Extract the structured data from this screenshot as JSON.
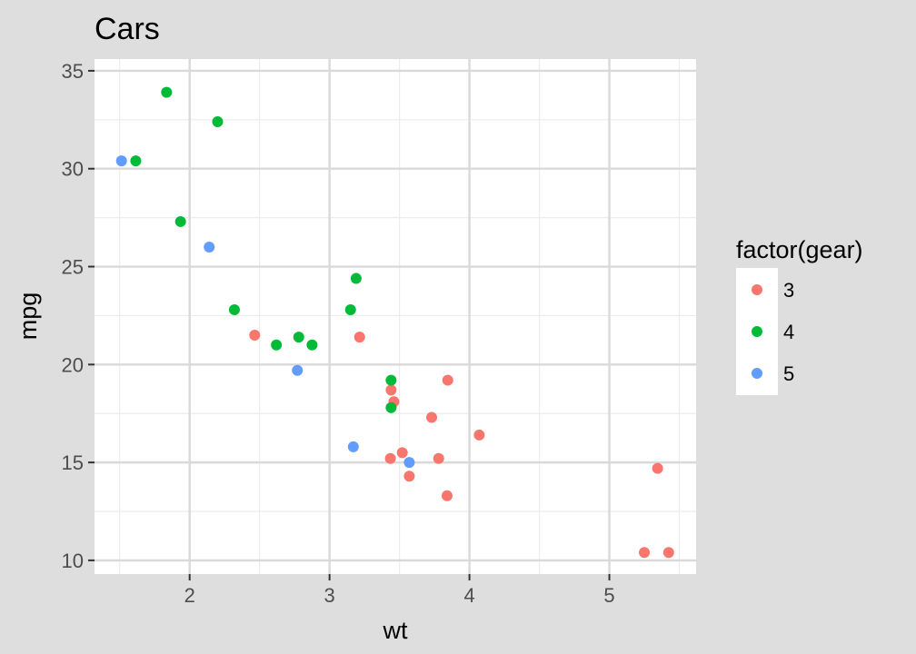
{
  "chart_data": {
    "type": "scatter",
    "title": "Cars",
    "xlabel": "wt",
    "ylabel": "mpg",
    "xlim": [
      1.32,
      5.62
    ],
    "ylim": [
      9.3,
      35.6
    ],
    "xticks": [
      2,
      3,
      4,
      5
    ],
    "yticks": [
      10,
      15,
      20,
      25,
      30,
      35
    ],
    "x_tick_labels": [
      "2",
      "3",
      "4",
      "5"
    ],
    "y_tick_labels": [
      "10",
      "15",
      "20",
      "25",
      "30",
      "35"
    ],
    "grid": true,
    "legend": {
      "title": "factor(gear)",
      "position": "right"
    },
    "series": [
      {
        "name": "3",
        "color": "#F8766D",
        "points": [
          {
            "x": 2.465,
            "y": 21.5
          },
          {
            "x": 3.215,
            "y": 21.4
          },
          {
            "x": 3.44,
            "y": 18.7
          },
          {
            "x": 3.46,
            "y": 18.1
          },
          {
            "x": 3.57,
            "y": 14.3
          },
          {
            "x": 4.07,
            "y": 16.4
          },
          {
            "x": 3.73,
            "y": 17.3
          },
          {
            "x": 3.78,
            "y": 15.2
          },
          {
            "x": 5.25,
            "y": 10.4
          },
          {
            "x": 5.424,
            "y": 10.4
          },
          {
            "x": 5.345,
            "y": 14.7
          },
          {
            "x": 3.52,
            "y": 15.5
          },
          {
            "x": 3.435,
            "y": 15.2
          },
          {
            "x": 3.84,
            "y": 13.3
          },
          {
            "x": 3.845,
            "y": 19.2
          }
        ]
      },
      {
        "name": "4",
        "color": "#00BA38",
        "points": [
          {
            "x": 2.62,
            "y": 21.0
          },
          {
            "x": 2.875,
            "y": 21.0
          },
          {
            "x": 2.32,
            "y": 22.8
          },
          {
            "x": 3.19,
            "y": 24.4
          },
          {
            "x": 3.15,
            "y": 22.8
          },
          {
            "x": 3.44,
            "y": 19.2
          },
          {
            "x": 3.44,
            "y": 17.8
          },
          {
            "x": 2.2,
            "y": 32.4
          },
          {
            "x": 1.615,
            "y": 30.4
          },
          {
            "x": 1.835,
            "y": 33.9
          },
          {
            "x": 1.935,
            "y": 27.3
          },
          {
            "x": 2.78,
            "y": 21.4
          }
        ]
      },
      {
        "name": "5",
        "color": "#619CFF",
        "points": [
          {
            "x": 2.14,
            "y": 26.0
          },
          {
            "x": 1.513,
            "y": 30.4
          },
          {
            "x": 3.17,
            "y": 15.8
          },
          {
            "x": 2.77,
            "y": 19.7
          },
          {
            "x": 3.57,
            "y": 15.0
          }
        ]
      }
    ]
  }
}
